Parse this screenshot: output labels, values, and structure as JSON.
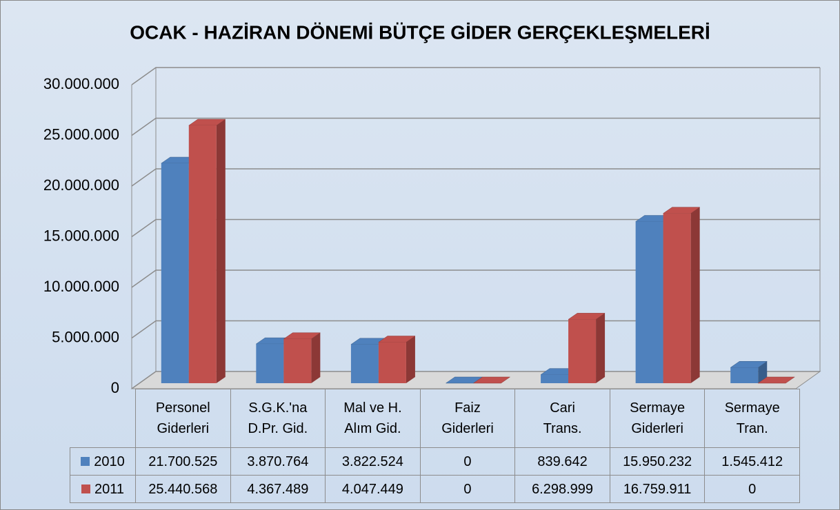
{
  "chart_data": {
    "type": "bar3d",
    "title": "OCAK - HAZİRAN DÖNEMİ BÜTÇE GİDER GERÇEKLEŞMELERİ",
    "categories": [
      "Personel\nGiderleri",
      "S.G.K.'na\nD.Pr. Gid.",
      "Mal ve H.\nAlım Gid.",
      "Faiz\nGiderleri",
      "Cari\nTrans.",
      "Sermaye\nGiderleri",
      "Sermaye\nTran."
    ],
    "series": [
      {
        "name": "2010",
        "color": "#4f81bd",
        "side_color": "#385d8a",
        "values": [
          21700525,
          3870764,
          3822524,
          0,
          839642,
          15950232,
          1545412
        ],
        "value_labels": [
          "21.700.525",
          "3.870.764",
          "3.822.524",
          "0",
          "839.642",
          "15.950.232",
          "1.545.412"
        ]
      },
      {
        "name": "2011",
        "color": "#c0504d",
        "side_color": "#8c3836",
        "values": [
          25440568,
          4367489,
          4047449,
          0,
          6298999,
          16759911,
          0
        ],
        "value_labels": [
          "25.440.568",
          "4.367.489",
          "4.047.449",
          "0",
          "6.298.999",
          "16.759.911",
          "0"
        ]
      }
    ],
    "ylim": [
      0,
      30000000
    ],
    "yticks": [
      0,
      {
        "value": 5000000,
        "label": "5.000.000"
      },
      {
        "value": 10000000,
        "label": "10.000.000"
      },
      {
        "value": 15000000,
        "label": "15.000.000"
      },
      {
        "value": 20000000,
        "label": "20.000.000"
      },
      {
        "value": 25000000,
        "label": "25.000.000"
      },
      {
        "value": 30000000,
        "label": "30.000.000"
      }
    ],
    "grid": true,
    "data_table": true
  }
}
